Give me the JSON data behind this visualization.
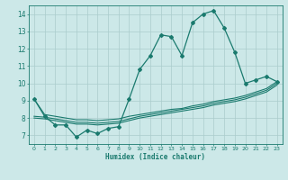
{
  "xlabel": "Humidex (Indice chaleur)",
  "bg_color": "#cce8e8",
  "grid_color": "#aacccc",
  "line_color": "#1a7a6e",
  "xlim": [
    -0.5,
    23.5
  ],
  "ylim": [
    6.5,
    14.5
  ],
  "yticks": [
    7,
    8,
    9,
    10,
    11,
    12,
    13,
    14
  ],
  "xticks": [
    0,
    1,
    2,
    3,
    4,
    5,
    6,
    7,
    8,
    9,
    10,
    11,
    12,
    13,
    14,
    15,
    16,
    17,
    18,
    19,
    20,
    21,
    22,
    23
  ],
  "x": [
    0,
    1,
    2,
    3,
    4,
    5,
    6,
    7,
    8,
    9,
    10,
    11,
    12,
    13,
    14,
    15,
    16,
    17,
    18,
    19,
    20,
    21,
    22,
    23
  ],
  "y_main": [
    9.1,
    8.1,
    7.6,
    7.6,
    6.9,
    7.3,
    7.1,
    7.4,
    7.5,
    9.1,
    10.8,
    11.6,
    12.8,
    12.7,
    11.6,
    13.5,
    14.0,
    14.2,
    13.2,
    11.8,
    10.0,
    10.2,
    10.4,
    10.1
  ],
  "y_line1": [
    9.1,
    8.2,
    8.1,
    8.0,
    7.9,
    7.9,
    7.85,
    7.9,
    7.95,
    8.1,
    8.2,
    8.3,
    8.4,
    8.5,
    8.55,
    8.7,
    8.8,
    8.95,
    9.05,
    9.15,
    9.3,
    9.5,
    9.7,
    10.1
  ],
  "y_line2": [
    8.1,
    8.05,
    7.95,
    7.85,
    7.75,
    7.75,
    7.7,
    7.75,
    7.8,
    7.95,
    8.1,
    8.2,
    8.3,
    8.4,
    8.5,
    8.6,
    8.7,
    8.85,
    8.95,
    9.05,
    9.2,
    9.4,
    9.6,
    10.0
  ],
  "y_line3": [
    8.0,
    7.95,
    7.85,
    7.75,
    7.65,
    7.65,
    7.6,
    7.65,
    7.7,
    7.85,
    8.0,
    8.1,
    8.2,
    8.3,
    8.4,
    8.5,
    8.6,
    8.75,
    8.85,
    8.95,
    9.1,
    9.3,
    9.5,
    9.9
  ]
}
